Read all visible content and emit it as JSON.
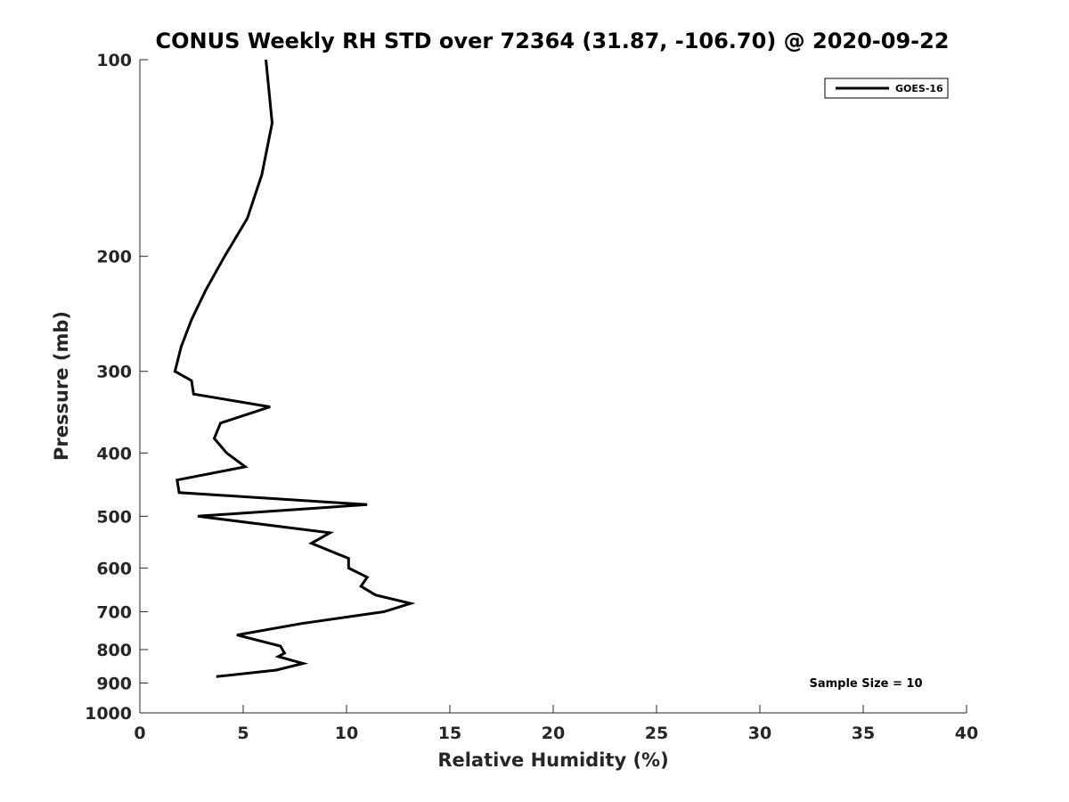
{
  "chart_data": {
    "type": "line",
    "title": "CONUS Weekly RH STD over 72364 (31.87, -106.70) @ 2020-09-22",
    "xlabel": "Relative Humidity (%)",
    "ylabel": "Pressure (mb)",
    "xlim": [
      0,
      40
    ],
    "ylim": [
      100,
      1000
    ],
    "y_scale": "log",
    "y_reversed": true,
    "x_ticks": [
      "0",
      "5",
      "10",
      "15",
      "20",
      "25",
      "30",
      "35",
      "40"
    ],
    "y_ticks": [
      "100",
      "200",
      "300",
      "400",
      "500",
      "600",
      "700",
      "800",
      "900",
      "1000"
    ],
    "grid": false,
    "legend_position": "top-right",
    "series": [
      {
        "name": "GOES-16",
        "color": "#000000",
        "points": [
          [
            6.1,
            100
          ],
          [
            6.4,
            125
          ],
          [
            5.9,
            150
          ],
          [
            5.2,
            175
          ],
          [
            4.1,
            200
          ],
          [
            3.2,
            225
          ],
          [
            2.5,
            250
          ],
          [
            2.0,
            275
          ],
          [
            1.7,
            300
          ],
          [
            2.5,
            310
          ],
          [
            2.6,
            325
          ],
          [
            6.3,
            340
          ],
          [
            3.9,
            360
          ],
          [
            3.6,
            380
          ],
          [
            4.2,
            400
          ],
          [
            5.1,
            420
          ],
          [
            1.8,
            440
          ],
          [
            1.9,
            460
          ],
          [
            11.0,
            480
          ],
          [
            2.8,
            500
          ],
          [
            9.2,
            530
          ],
          [
            8.3,
            550
          ],
          [
            10.1,
            580
          ],
          [
            10.1,
            600
          ],
          [
            11.0,
            620
          ],
          [
            10.7,
            640
          ],
          [
            11.4,
            660
          ],
          [
            13.1,
            680
          ],
          [
            11.8,
            700
          ],
          [
            7.8,
            730
          ],
          [
            4.7,
            760
          ],
          [
            6.8,
            790
          ],
          [
            7.0,
            810
          ],
          [
            6.7,
            820
          ],
          [
            7.9,
            840
          ],
          [
            6.6,
            860
          ],
          [
            3.7,
            880
          ]
        ]
      }
    ],
    "annotation": "Sample Size = 10"
  }
}
